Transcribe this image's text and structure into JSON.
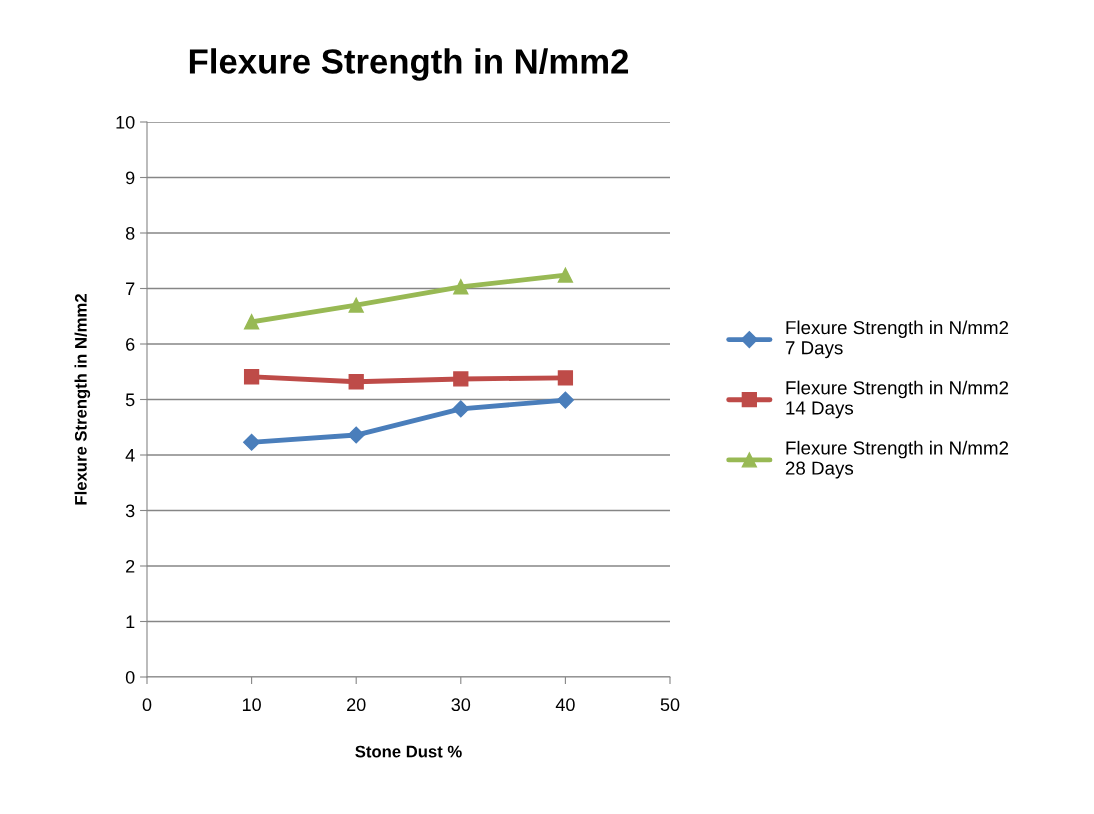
{
  "chart_data": {
    "type": "line",
    "title": "Flexure Strength in N/mm2",
    "xlabel": "Stone Dust %",
    "ylabel": "Flexure Strength in N/mm2",
    "x": [
      10,
      20,
      30,
      40
    ],
    "series": [
      {
        "name": "Flexure Strength in N/mm2\n7 Days",
        "color": "#4a7ebb",
        "marker": "diamond",
        "values": [
          4.23,
          4.36,
          4.83,
          4.99
        ]
      },
      {
        "name": "Flexure Strength in N/mm2\n14 Days",
        "color": "#be4b48",
        "marker": "square",
        "values": [
          5.41,
          5.32,
          5.37,
          5.39
        ]
      },
      {
        "name": "Flexure Strength in N/mm2\n28 Days",
        "color": "#98b954",
        "marker": "triangle",
        "values": [
          6.4,
          6.7,
          7.03,
          7.24
        ]
      }
    ],
    "xlim": [
      0,
      50
    ],
    "xticks": [
      0,
      10,
      20,
      30,
      40,
      50
    ],
    "ylim": [
      0,
      10
    ],
    "yticks": [
      0,
      1,
      2,
      3,
      4,
      5,
      6,
      7,
      8,
      9,
      10
    ],
    "grid": "y",
    "legend": "right",
    "line_style": "solid"
  }
}
